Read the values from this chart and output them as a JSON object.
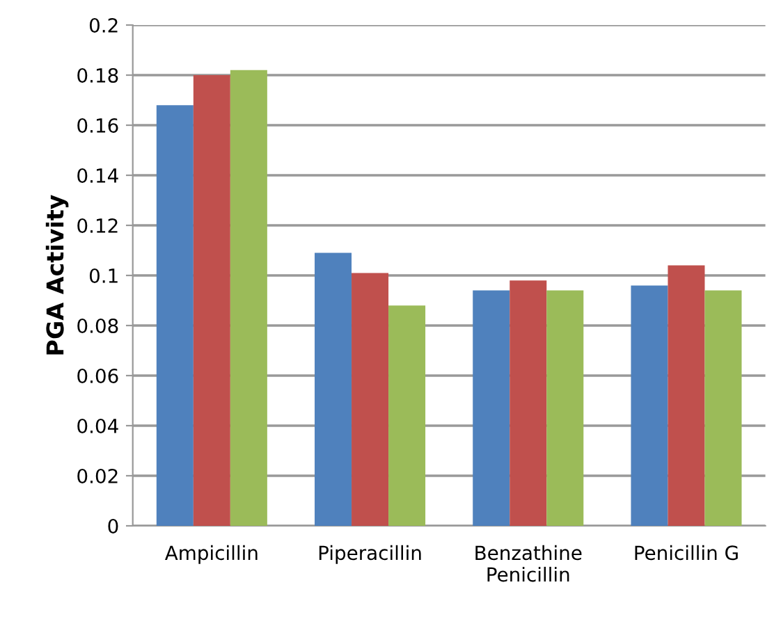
{
  "chart_data": {
    "type": "bar",
    "ylabel": "PGA Activity",
    "categories": [
      "Ampicillin",
      "Piperacillin",
      "Benzathine\nPenicillin",
      "Penicillin G"
    ],
    "series": [
      {
        "color": "#4f81bd",
        "values": [
          0.168,
          0.109,
          0.094,
          0.096
        ]
      },
      {
        "color": "#c0504d",
        "values": [
          0.18,
          0.101,
          0.098,
          0.104
        ]
      },
      {
        "color": "#9bbb59",
        "values": [
          0.182,
          0.088,
          0.094,
          0.094
        ]
      }
    ],
    "ylim": [
      0,
      0.2
    ],
    "yticks": [
      0,
      0.02,
      0.04,
      0.06,
      0.08,
      0.1,
      0.12,
      0.14,
      0.16,
      0.18,
      0.2
    ],
    "grid": "y",
    "legend": false
  }
}
